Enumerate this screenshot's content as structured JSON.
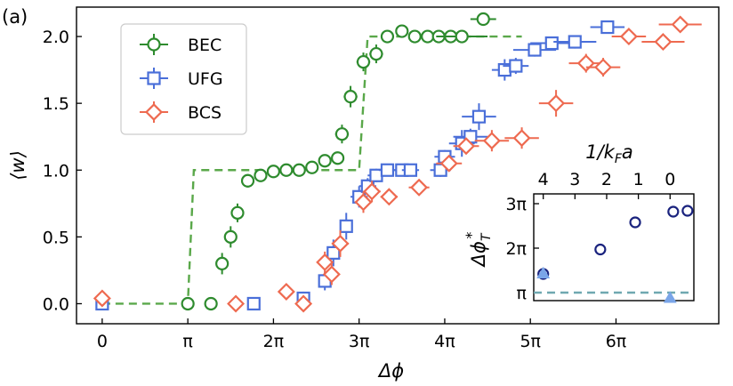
{
  "chart_data": [
    {
      "type": "scatter",
      "panel_label": "(a)",
      "xlabel": "Δϕ",
      "ylabel": "⟨w⟩",
      "xlim_pi": [
        -0.3,
        7.2
      ],
      "ylim": [
        -0.15,
        2.22
      ],
      "x_unit": "π",
      "xticks": [
        {
          "v": 0,
          "label": "0"
        },
        {
          "v": 1,
          "label": "π"
        },
        {
          "v": 2,
          "label": "2π"
        },
        {
          "v": 3,
          "label": "3π"
        },
        {
          "v": 4,
          "label": "4π"
        },
        {
          "v": 5,
          "label": "5π"
        },
        {
          "v": 6,
          "label": "6π"
        }
      ],
      "yticks": [
        {
          "v": 0.0,
          "label": "0.0"
        },
        {
          "v": 0.5,
          "label": "0.5"
        },
        {
          "v": 1.0,
          "label": "1.0"
        },
        {
          "v": 1.5,
          "label": "1.5"
        },
        {
          "v": 2.0,
          "label": "2.0"
        }
      ],
      "legend": {
        "position": "top-left",
        "entries": [
          {
            "name": "BEC",
            "color": "#2e8b2e",
            "marker": "circle"
          },
          {
            "name": "UFG",
            "color": "#4a6fd9",
            "marker": "square"
          },
          {
            "name": "BCS",
            "color": "#ee6a50",
            "marker": "diamond"
          }
        ]
      },
      "step_line": {
        "color": "#5aa84a",
        "points": [
          [
            0,
            0
          ],
          [
            1.0,
            0
          ],
          [
            1.07,
            1.0
          ],
          [
            3.0,
            1.0
          ],
          [
            3.1,
            2.0
          ],
          [
            4.9,
            2.0
          ]
        ]
      },
      "series": [
        {
          "name": "BEC",
          "color": "#2e8b2e",
          "marker": "circle",
          "points": [
            {
              "x": 1.0,
              "y": 0.0,
              "xerr": 0.0,
              "yerr": 0.0
            },
            {
              "x": 1.27,
              "y": 0.0,
              "xerr": 0.0,
              "yerr": 0.0
            },
            {
              "x": 1.4,
              "y": 0.3,
              "xerr": 0.05,
              "yerr": 0.08
            },
            {
              "x": 1.5,
              "y": 0.5,
              "xerr": 0.05,
              "yerr": 0.08
            },
            {
              "x": 1.58,
              "y": 0.68,
              "xerr": 0.05,
              "yerr": 0.07
            },
            {
              "x": 1.7,
              "y": 0.92,
              "xerr": 0.05,
              "yerr": 0.05
            },
            {
              "x": 1.85,
              "y": 0.96,
              "xerr": 0.05,
              "yerr": 0.04
            },
            {
              "x": 2.0,
              "y": 0.99,
              "xerr": 0.05,
              "yerr": 0.03
            },
            {
              "x": 2.15,
              "y": 1.0,
              "xerr": 0.05,
              "yerr": 0.03
            },
            {
              "x": 2.3,
              "y": 1.0,
              "xerr": 0.05,
              "yerr": 0.03
            },
            {
              "x": 2.45,
              "y": 1.02,
              "xerr": 0.05,
              "yerr": 0.03
            },
            {
              "x": 2.6,
              "y": 1.07,
              "xerr": 0.05,
              "yerr": 0.03
            },
            {
              "x": 2.75,
              "y": 1.09,
              "xerr": 0.05,
              "yerr": 0.04
            },
            {
              "x": 2.8,
              "y": 1.27,
              "xerr": 0.08,
              "yerr": 0.07
            },
            {
              "x": 2.9,
              "y": 1.55,
              "xerr": 0.08,
              "yerr": 0.08
            },
            {
              "x": 3.05,
              "y": 1.81,
              "xerr": 0.08,
              "yerr": 0.07
            },
            {
              "x": 3.2,
              "y": 1.87,
              "xerr": 0.08,
              "yerr": 0.07
            },
            {
              "x": 3.33,
              "y": 2.0,
              "xerr": 0.06,
              "yerr": 0.03
            },
            {
              "x": 3.5,
              "y": 2.04,
              "xerr": 0.06,
              "yerr": 0.03
            },
            {
              "x": 3.65,
              "y": 2.0,
              "xerr": 0.06,
              "yerr": 0.02
            },
            {
              "x": 3.8,
              "y": 2.0,
              "xerr": 0.06,
              "yerr": 0.02
            },
            {
              "x": 3.93,
              "y": 2.0,
              "xerr": 0.06,
              "yerr": 0.02
            },
            {
              "x": 4.07,
              "y": 2.0,
              "xerr": 0.06,
              "yerr": 0.02
            },
            {
              "x": 4.2,
              "y": 2.0,
              "xerr": 0.3,
              "yerr": 0.02
            },
            {
              "x": 4.45,
              "y": 2.13,
              "xerr": 0.15,
              "yerr": 0.05
            }
          ]
        },
        {
          "name": "UFG",
          "color": "#4a6fd9",
          "marker": "square",
          "points": [
            {
              "x": 0.0,
              "y": 0.0,
              "xerr": 0.0,
              "yerr": 0.0
            },
            {
              "x": 1.77,
              "y": 0.0,
              "xerr": 0.0,
              "yerr": 0.0
            },
            {
              "x": 2.35,
              "y": 0.04,
              "xerr": 0.05,
              "yerr": 0.05
            },
            {
              "x": 2.6,
              "y": 0.17,
              "xerr": 0.07,
              "yerr": 0.07
            },
            {
              "x": 2.7,
              "y": 0.38,
              "xerr": 0.07,
              "yerr": 0.1
            },
            {
              "x": 2.85,
              "y": 0.58,
              "xerr": 0.07,
              "yerr": 0.1
            },
            {
              "x": 3.0,
              "y": 0.8,
              "xerr": 0.1,
              "yerr": 0.08
            },
            {
              "x": 3.1,
              "y": 0.88,
              "xerr": 0.1,
              "yerr": 0.06
            },
            {
              "x": 3.2,
              "y": 0.96,
              "xerr": 0.1,
              "yerr": 0.05
            },
            {
              "x": 3.33,
              "y": 1.0,
              "xerr": 0.1,
              "yerr": 0.04
            },
            {
              "x": 3.5,
              "y": 1.0,
              "xerr": 0.1,
              "yerr": 0.04
            },
            {
              "x": 3.6,
              "y": 1.0,
              "xerr": 0.1,
              "yerr": 0.04
            },
            {
              "x": 3.95,
              "y": 1.0,
              "xerr": 0.12,
              "yerr": 0.05
            },
            {
              "x": 4.0,
              "y": 1.1,
              "xerr": 0.12,
              "yerr": 0.05
            },
            {
              "x": 4.2,
              "y": 1.2,
              "xerr": 0.15,
              "yerr": 0.1
            },
            {
              "x": 4.4,
              "y": 1.4,
              "xerr": 0.2,
              "yerr": 0.1
            },
            {
              "x": 4.3,
              "y": 1.25,
              "xerr": 0.2,
              "yerr": 0.06
            },
            {
              "x": 4.7,
              "y": 1.75,
              "xerr": 0.15,
              "yerr": 0.08
            },
            {
              "x": 4.83,
              "y": 1.78,
              "xerr": 0.15,
              "yerr": 0.06
            },
            {
              "x": 5.05,
              "y": 1.9,
              "xerr": 0.25,
              "yerr": 0.05
            },
            {
              "x": 5.25,
              "y": 1.95,
              "xerr": 0.25,
              "yerr": 0.05
            },
            {
              "x": 5.52,
              "y": 1.96,
              "xerr": 0.25,
              "yerr": 0.05
            },
            {
              "x": 5.9,
              "y": 2.07,
              "xerr": 0.2,
              "yerr": 0.04
            }
          ]
        },
        {
          "name": "BCS",
          "color": "#ee6a50",
          "marker": "diamond",
          "points": [
            {
              "x": 0.0,
              "y": 0.04,
              "xerr": 0.0,
              "yerr": 0.0
            },
            {
              "x": 1.56,
              "y": 0.0,
              "xerr": 0.0,
              "yerr": 0.0
            },
            {
              "x": 2.15,
              "y": 0.09,
              "xerr": 0.05,
              "yerr": 0.05
            },
            {
              "x": 2.35,
              "y": 0.0,
              "xerr": 0.05,
              "yerr": 0.05
            },
            {
              "x": 2.6,
              "y": 0.31,
              "xerr": 0.08,
              "yerr": 0.08
            },
            {
              "x": 2.68,
              "y": 0.22,
              "xerr": 0.08,
              "yerr": 0.08
            },
            {
              "x": 2.78,
              "y": 0.45,
              "xerr": 0.1,
              "yerr": 0.1
            },
            {
              "x": 3.05,
              "y": 0.76,
              "xerr": 0.1,
              "yerr": 0.08
            },
            {
              "x": 3.15,
              "y": 0.84,
              "xerr": 0.1,
              "yerr": 0.08
            },
            {
              "x": 3.35,
              "y": 0.8,
              "xerr": 0.1,
              "yerr": 0.06
            },
            {
              "x": 3.7,
              "y": 0.87,
              "xerr": 0.12,
              "yerr": 0.05
            },
            {
              "x": 4.05,
              "y": 1.05,
              "xerr": 0.15,
              "yerr": 0.05
            },
            {
              "x": 4.25,
              "y": 1.18,
              "xerr": 0.15,
              "yerr": 0.06
            },
            {
              "x": 4.55,
              "y": 1.22,
              "xerr": 0.2,
              "yerr": 0.08
            },
            {
              "x": 4.9,
              "y": 1.24,
              "xerr": 0.2,
              "yerr": 0.08
            },
            {
              "x": 5.3,
              "y": 1.5,
              "xerr": 0.2,
              "yerr": 0.1
            },
            {
              "x": 5.65,
              "y": 1.8,
              "xerr": 0.2,
              "yerr": 0.07
            },
            {
              "x": 5.85,
              "y": 1.77,
              "xerr": 0.2,
              "yerr": 0.07
            },
            {
              "x": 6.15,
              "y": 2.0,
              "xerr": 0.2,
              "yerr": 0.04
            },
            {
              "x": 6.55,
              "y": 1.96,
              "xerr": 0.25,
              "yerr": 0.06
            },
            {
              "x": 6.75,
              "y": 2.09,
              "xerr": 0.25,
              "yerr": 0.06
            }
          ]
        }
      ]
    },
    {
      "type": "scatter",
      "panel": "inset",
      "top_xlabel": "1/k_Fa",
      "top_xlabel_parts": {
        "main": "1/k",
        "sub": "F",
        "tail": "a"
      },
      "ylabel_parts": {
        "main": "Δϕ",
        "sub": "T",
        "sup": "*"
      },
      "xlim": [
        4.3,
        -0.75
      ],
      "ylim_pi": [
        0.82,
        3.22
      ],
      "top_xticks": [
        {
          "v": 4,
          "label": "4"
        },
        {
          "v": 3,
          "label": "3"
        },
        {
          "v": 2,
          "label": "2"
        },
        {
          "v": 1,
          "label": "1"
        },
        {
          "v": 0,
          "label": "0"
        }
      ],
      "yticks": [
        {
          "v": 1,
          "label": "π"
        },
        {
          "v": 2,
          "label": "2π"
        },
        {
          "v": 3,
          "label": "3π"
        }
      ],
      "reference_line": {
        "y_pi": 1,
        "color": "#6fa8b0",
        "style": "dashed"
      },
      "series": [
        {
          "name": "circles",
          "color": "#1a237e",
          "marker": "circle",
          "points": [
            {
              "x": 4.0,
              "y_pi": 1.42
            },
            {
              "x": 2.2,
              "y_pi": 1.97
            },
            {
              "x": 1.1,
              "y_pi": 2.58
            },
            {
              "x": -0.1,
              "y_pi": 2.82
            },
            {
              "x": -0.55,
              "y_pi": 2.84
            }
          ]
        },
        {
          "name": "triangles",
          "color": "#7aa5e8",
          "marker": "triangle",
          "points": [
            {
              "x": 4.0,
              "y_pi": 1.43
            },
            {
              "x": 0.0,
              "y_pi": 0.88
            }
          ]
        }
      ]
    }
  ]
}
